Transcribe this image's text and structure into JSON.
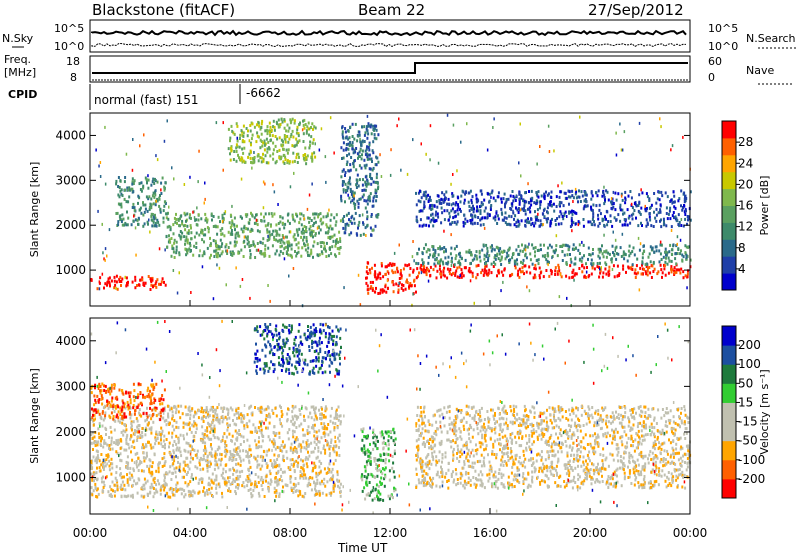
{
  "header": {
    "station": "Blackstone (fitACF)",
    "beam": "Beam 22",
    "date": "27/Sep/2012"
  },
  "top_panels": {
    "nsky_label": "N.Sky",
    "nsearch_label": "N.Search",
    "noise_ticks": [
      "10^5",
      "10^0"
    ],
    "freq_label": "Freq.",
    "freq_unit": "[MHz]",
    "freq_ticks": [
      "18",
      "8"
    ],
    "nave_label": "Nave",
    "nave_ticks": [
      "60",
      "0"
    ],
    "cpid_label": "CPID",
    "cpid_mode": "normal (fast) 151",
    "cpid_value": "-6662"
  },
  "chart_data": [
    {
      "type": "heatmap",
      "name": "Power",
      "ylabel": "Slant Range [km]",
      "yticks": [
        1000,
        2000,
        3000,
        4000
      ],
      "ylim": [
        200,
        4500
      ],
      "xlim": [
        0,
        24
      ],
      "colorbar_label": "Power [dB]",
      "colorbar_ticks": [
        "4",
        "8",
        "12",
        "16",
        "20",
        "24",
        "28"
      ],
      "colorscale": [
        "#0000cc",
        "#1f3fa8",
        "#2a6a8a",
        "#3d8a6a",
        "#5aa060",
        "#7fb84d",
        "#c8c800",
        "#ffa500",
        "#ff6000",
        "#ff0000"
      ],
      "regions": [
        {
          "t0": 0.0,
          "t1": 3.0,
          "r0": 600,
          "r1": 900,
          "level": 9
        },
        {
          "t0": 3.0,
          "t1": 10.0,
          "r0": 1300,
          "r1": 2300,
          "level": 4
        },
        {
          "t0": 1.0,
          "t1": 3.0,
          "r0": 2000,
          "r1": 3100,
          "level": 3
        },
        {
          "t0": 5.5,
          "t1": 9.0,
          "r0": 3400,
          "r1": 4400,
          "level": 5
        },
        {
          "t0": 10.0,
          "t1": 11.5,
          "r0": 1800,
          "r1": 4300,
          "level": 2
        },
        {
          "t0": 11.0,
          "t1": 13.0,
          "r0": 500,
          "r1": 1200,
          "level": 9
        },
        {
          "t0": 13.0,
          "t1": 24.0,
          "r0": 850,
          "r1": 1150,
          "level": 9
        },
        {
          "t0": 13.0,
          "t1": 24.0,
          "r0": 1150,
          "r1": 1600,
          "level": 3
        },
        {
          "t0": 13.0,
          "t1": 24.0,
          "r0": 2000,
          "r1": 2800,
          "level": 1
        }
      ]
    },
    {
      "type": "heatmap",
      "name": "Velocity",
      "ylabel": "Slant Range [km]",
      "yticks": [
        1000,
        2000,
        3000,
        4000
      ],
      "ylim": [
        200,
        4500
      ],
      "xlim": [
        0,
        24
      ],
      "colorbar_label": "Velocity [m s⁻¹]",
      "colorbar_ticks": [
        "-200",
        "-100",
        "-50",
        "-15",
        "15",
        "50",
        "100",
        "200"
      ],
      "colorscale": [
        "#ff0000",
        "#ff6000",
        "#ffa500",
        "#c0c0b0",
        "#c0c0b0",
        "#32cd32",
        "#1e7a3c",
        "#1c4fa0",
        "#0000cc"
      ],
      "regions": [
        {
          "t0": 0.0,
          "t1": 10.0,
          "r0": 600,
          "r1": 2600,
          "level": 3
        },
        {
          "t0": 0.0,
          "t1": 3.0,
          "r0": 2300,
          "r1": 3100,
          "level": 1
        },
        {
          "t0": 6.5,
          "t1": 10.0,
          "r0": 3300,
          "r1": 4400,
          "level": 7
        },
        {
          "t0": 10.8,
          "t1": 12.2,
          "r0": 500,
          "r1": 2100,
          "level": 5
        },
        {
          "t0": 13.0,
          "t1": 24.0,
          "r0": 800,
          "r1": 2600,
          "level": 3
        }
      ]
    }
  ],
  "x_axis": {
    "label": "Time UT",
    "ticks": [
      "00:00",
      "04:00",
      "08:00",
      "12:00",
      "16:00",
      "20:00",
      "00:00"
    ]
  }
}
